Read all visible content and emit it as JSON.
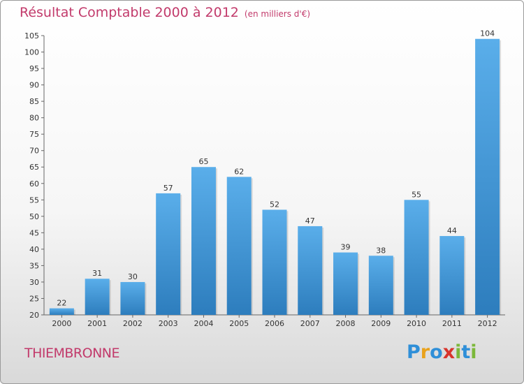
{
  "header": {
    "title": "Résultat Comptable 2000 à 2012",
    "subtitle": "(en milliers d'€)"
  },
  "footer": {
    "town": "THIEMBRONNE",
    "logo": {
      "letters": [
        "P",
        "r",
        "o",
        "x",
        "i",
        "t",
        "i"
      ],
      "colors": [
        "#2f8fd8",
        "#e9a21c",
        "#2f8fd8",
        "#d8342c",
        "#7cb83a",
        "#2f8fd8",
        "#7cb83a"
      ]
    }
  },
  "colors": {
    "bar_light": "#5aaeea",
    "bar_dark": "#2d7dbd",
    "title": "#c23a6b"
  },
  "chart_data": {
    "type": "bar",
    "title": "Résultat Comptable 2000 à 2012",
    "subtitle": "(en milliers d'€)",
    "categories": [
      "2000",
      "2001",
      "2002",
      "2003",
      "2004",
      "2005",
      "2006",
      "2007",
      "2008",
      "2009",
      "2010",
      "2011",
      "2012"
    ],
    "values": [
      22,
      31,
      30,
      57,
      65,
      62,
      52,
      47,
      39,
      38,
      55,
      44,
      104
    ],
    "xlabel": "",
    "ylabel": "",
    "ylim": [
      20,
      105
    ],
    "yticks": [
      20,
      25,
      30,
      35,
      40,
      45,
      50,
      55,
      60,
      65,
      70,
      75,
      80,
      85,
      90,
      95,
      100,
      105
    ],
    "grid": false,
    "data_labels": true
  }
}
